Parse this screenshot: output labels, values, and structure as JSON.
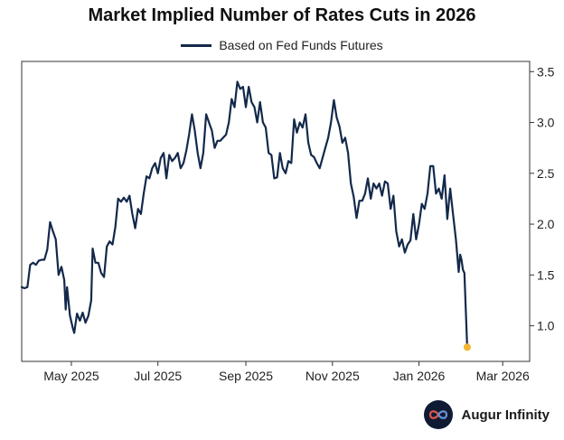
{
  "chart_data": {
    "type": "line",
    "title": "Market Implied Number of Rates Cuts in 2026",
    "xlabel": "",
    "ylabel": "",
    "x_range": [
      "2025-03-27",
      "2026-03-20"
    ],
    "ylim": [
      0.65,
      3.6
    ],
    "y_ticks": [
      1.0,
      1.5,
      2.0,
      2.5,
      3.0,
      3.5
    ],
    "y_tick_labels": [
      "1.0",
      "1.5",
      "2.0",
      "2.5",
      "3.0",
      "3.5"
    ],
    "x_ticks": [
      "2025-05-01",
      "2025-07-01",
      "2025-09-01",
      "2025-11-01",
      "2026-01-01",
      "2026-03-01"
    ],
    "x_tick_labels": [
      "May 2025",
      "Jul 2025",
      "Sep 2025",
      "Nov 2025",
      "Jan 2026",
      "Mar 2026"
    ],
    "grid": false,
    "legend_position": "top-center",
    "series": [
      {
        "name": "Based on Fed Funds Futures",
        "color": "#13294b",
        "points": [
          [
            "2025-03-27",
            1.38
          ],
          [
            "2025-03-29",
            1.37
          ],
          [
            "2025-03-31",
            1.38
          ],
          [
            "2025-04-02",
            1.6
          ],
          [
            "2025-04-04",
            1.62
          ],
          [
            "2025-04-06",
            1.6
          ],
          [
            "2025-04-08",
            1.64
          ],
          [
            "2025-04-10",
            1.65
          ],
          [
            "2025-04-12",
            1.65
          ],
          [
            "2025-04-14",
            1.75
          ],
          [
            "2025-04-16",
            2.02
          ],
          [
            "2025-04-18",
            1.93
          ],
          [
            "2025-04-20",
            1.85
          ],
          [
            "2025-04-22",
            1.5
          ],
          [
            "2025-04-24",
            1.58
          ],
          [
            "2025-04-26",
            1.45
          ],
          [
            "2025-04-27",
            1.16
          ],
          [
            "2025-04-28",
            1.38
          ],
          [
            "2025-04-30",
            1.1
          ],
          [
            "2025-05-02",
            0.98
          ],
          [
            "2025-05-03",
            0.93
          ],
          [
            "2025-05-05",
            1.12
          ],
          [
            "2025-05-07",
            1.05
          ],
          [
            "2025-05-09",
            1.13
          ],
          [
            "2025-05-11",
            1.03
          ],
          [
            "2025-05-13",
            1.1
          ],
          [
            "2025-05-15",
            1.25
          ],
          [
            "2025-05-16",
            1.76
          ],
          [
            "2025-05-18",
            1.62
          ],
          [
            "2025-05-20",
            1.62
          ],
          [
            "2025-05-22",
            1.52
          ],
          [
            "2025-05-24",
            1.48
          ],
          [
            "2025-05-26",
            1.78
          ],
          [
            "2025-05-28",
            1.83
          ],
          [
            "2025-05-30",
            1.8
          ],
          [
            "2025-06-01",
            1.97
          ],
          [
            "2025-06-03",
            2.25
          ],
          [
            "2025-06-05",
            2.22
          ],
          [
            "2025-06-07",
            2.26
          ],
          [
            "2025-06-09",
            2.22
          ],
          [
            "2025-06-11",
            2.28
          ],
          [
            "2025-06-13",
            2.1
          ],
          [
            "2025-06-15",
            1.96
          ],
          [
            "2025-06-17",
            2.15
          ],
          [
            "2025-06-19",
            2.1
          ],
          [
            "2025-06-21",
            2.3
          ],
          [
            "2025-06-23",
            2.47
          ],
          [
            "2025-06-25",
            2.45
          ],
          [
            "2025-06-27",
            2.55
          ],
          [
            "2025-06-29",
            2.6
          ],
          [
            "2025-07-01",
            2.5
          ],
          [
            "2025-07-03",
            2.65
          ],
          [
            "2025-07-05",
            2.7
          ],
          [
            "2025-07-07",
            2.45
          ],
          [
            "2025-07-09",
            2.68
          ],
          [
            "2025-07-11",
            2.62
          ],
          [
            "2025-07-13",
            2.65
          ],
          [
            "2025-07-15",
            2.7
          ],
          [
            "2025-07-17",
            2.55
          ],
          [
            "2025-07-19",
            2.6
          ],
          [
            "2025-07-21",
            2.72
          ],
          [
            "2025-07-23",
            2.88
          ],
          [
            "2025-07-25",
            3.08
          ],
          [
            "2025-07-27",
            2.92
          ],
          [
            "2025-07-29",
            2.7
          ],
          [
            "2025-07-31",
            2.55
          ],
          [
            "2025-08-02",
            2.7
          ],
          [
            "2025-08-04",
            3.08
          ],
          [
            "2025-08-06",
            3.0
          ],
          [
            "2025-08-08",
            2.92
          ],
          [
            "2025-08-10",
            2.75
          ],
          [
            "2025-08-12",
            2.82
          ],
          [
            "2025-08-14",
            2.82
          ],
          [
            "2025-08-16",
            2.85
          ],
          [
            "2025-08-18",
            2.88
          ],
          [
            "2025-08-20",
            3.0
          ],
          [
            "2025-08-22",
            3.23
          ],
          [
            "2025-08-24",
            3.15
          ],
          [
            "2025-08-26",
            3.4
          ],
          [
            "2025-08-28",
            3.33
          ],
          [
            "2025-08-30",
            3.35
          ],
          [
            "2025-09-01",
            3.15
          ],
          [
            "2025-09-03",
            3.35
          ],
          [
            "2025-09-05",
            3.2
          ],
          [
            "2025-09-07",
            3.15
          ],
          [
            "2025-09-09",
            3.0
          ],
          [
            "2025-09-11",
            3.2
          ],
          [
            "2025-09-13",
            3.0
          ],
          [
            "2025-09-15",
            2.95
          ],
          [
            "2025-09-17",
            2.7
          ],
          [
            "2025-09-19",
            2.68
          ],
          [
            "2025-09-21",
            2.45
          ],
          [
            "2025-09-23",
            2.46
          ],
          [
            "2025-09-25",
            2.7
          ],
          [
            "2025-09-27",
            2.55
          ],
          [
            "2025-09-29",
            2.5
          ],
          [
            "2025-10-01",
            2.62
          ],
          [
            "2025-10-03",
            2.6
          ],
          [
            "2025-10-05",
            3.03
          ],
          [
            "2025-10-07",
            2.9
          ],
          [
            "2025-10-09",
            3.0
          ],
          [
            "2025-10-11",
            2.95
          ],
          [
            "2025-10-13",
            3.08
          ],
          [
            "2025-10-15",
            2.8
          ],
          [
            "2025-10-17",
            2.68
          ],
          [
            "2025-10-19",
            2.66
          ],
          [
            "2025-10-21",
            2.6
          ],
          [
            "2025-10-23",
            2.55
          ],
          [
            "2025-10-25",
            2.65
          ],
          [
            "2025-10-27",
            2.75
          ],
          [
            "2025-10-29",
            2.85
          ],
          [
            "2025-10-31",
            3.0
          ],
          [
            "2025-11-02",
            3.22
          ],
          [
            "2025-11-04",
            3.05
          ],
          [
            "2025-11-06",
            2.96
          ],
          [
            "2025-11-08",
            2.8
          ],
          [
            "2025-11-10",
            2.85
          ],
          [
            "2025-11-12",
            2.7
          ],
          [
            "2025-11-14",
            2.4
          ],
          [
            "2025-11-16",
            2.27
          ],
          [
            "2025-11-18",
            2.06
          ],
          [
            "2025-11-20",
            2.23
          ],
          [
            "2025-11-22",
            2.23
          ],
          [
            "2025-11-24",
            2.3
          ],
          [
            "2025-11-26",
            2.45
          ],
          [
            "2025-11-28",
            2.25
          ],
          [
            "2025-11-30",
            2.4
          ],
          [
            "2025-12-02",
            2.35
          ],
          [
            "2025-12-04",
            2.4
          ],
          [
            "2025-12-06",
            2.28
          ],
          [
            "2025-12-08",
            2.42
          ],
          [
            "2025-12-10",
            2.4
          ],
          [
            "2025-12-12",
            2.15
          ],
          [
            "2025-12-14",
            2.28
          ],
          [
            "2025-12-16",
            1.93
          ],
          [
            "2025-12-18",
            1.78
          ],
          [
            "2025-12-20",
            1.85
          ],
          [
            "2025-12-22",
            1.72
          ],
          [
            "2025-12-24",
            1.8
          ],
          [
            "2025-12-26",
            1.84
          ],
          [
            "2025-12-28",
            2.1
          ],
          [
            "2025-12-30",
            1.85
          ],
          [
            "2026-01-01",
            2.0
          ],
          [
            "2026-01-03",
            2.2
          ],
          [
            "2026-01-05",
            2.15
          ],
          [
            "2026-01-07",
            2.3
          ],
          [
            "2026-01-09",
            2.57
          ],
          [
            "2026-01-11",
            2.57
          ],
          [
            "2026-01-13",
            2.3
          ],
          [
            "2026-01-15",
            2.35
          ],
          [
            "2026-01-17",
            2.25
          ],
          [
            "2026-01-19",
            2.48
          ],
          [
            "2026-01-21",
            2.05
          ],
          [
            "2026-01-23",
            2.35
          ],
          [
            "2026-01-25",
            2.1
          ],
          [
            "2026-01-27",
            1.85
          ],
          [
            "2026-01-29",
            1.53
          ],
          [
            "2026-01-30",
            1.7
          ],
          [
            "2026-01-31",
            1.65
          ],
          [
            "2026-02-01",
            1.55
          ],
          [
            "2026-02-02",
            1.52
          ],
          [
            "2026-02-04",
            0.79
          ]
        ]
      }
    ],
    "highlight_point": {
      "x": "2026-02-04",
      "y": 0.79,
      "color": "#f2b632"
    }
  },
  "brand": {
    "name": "Augur Infinity",
    "logo_bg": "#0f1b33",
    "logo_accent": "#e0564a",
    "logo_accent2": "#6a8fd6"
  }
}
